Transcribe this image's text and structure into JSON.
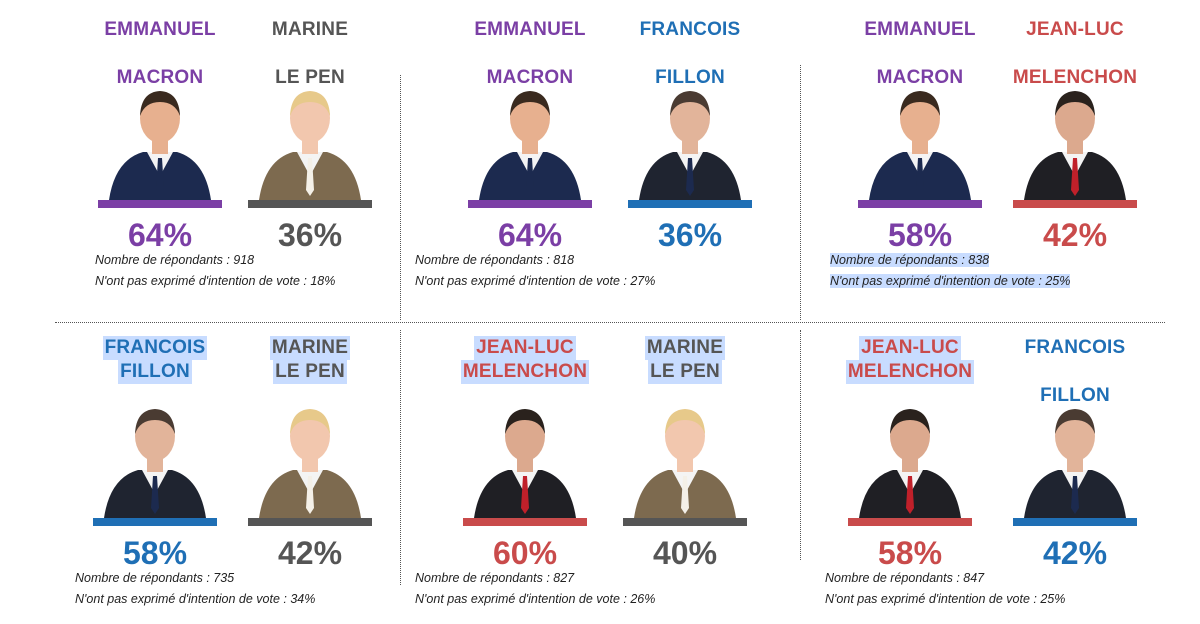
{
  "chart_data": [
    {
      "type": "bar",
      "categories": [
        "EMMANUEL MACRON",
        "MARINE LE PEN"
      ],
      "values": [
        64,
        36
      ],
      "candidates": [
        {
          "name_lines": [
            "EMMANUEL",
            "MACRON"
          ],
          "value": 64,
          "label": "64%",
          "color": "#7b3fa5",
          "suit": "#1c2a4f",
          "skin": "#e7b08f",
          "hair": "#3a2a1f",
          "tie": "#1c2a4f"
        },
        {
          "name_lines": [
            "MARINE",
            "LE PEN"
          ],
          "value": 36,
          "label": "36%",
          "color": "#555555",
          "suit": "#7d6a4f",
          "skin": "#f2c7ae",
          "hair": "#e7c98a",
          "tie": "#f4f0e8"
        }
      ],
      "respondents": "Nombre de répondants : 918",
      "no_intention": "N'ont pas exprimé d'intention de vote : 18%"
    },
    {
      "type": "bar",
      "categories": [
        "EMMANUEL MACRON",
        "FRANCOIS FILLON"
      ],
      "values": [
        64,
        36
      ],
      "candidates": [
        {
          "name_lines": [
            "EMMANUEL",
            "MACRON"
          ],
          "value": 64,
          "label": "64%",
          "color": "#7b3fa5",
          "suit": "#1c2a4f",
          "skin": "#e7b08f",
          "hair": "#3a2a1f",
          "tie": "#1c2a4f"
        },
        {
          "name_lines": [
            "FRANCOIS",
            "FILLON"
          ],
          "value": 36,
          "label": "36%",
          "color": "#1f6fb5",
          "suit": "#1f2430",
          "skin": "#e2b49a",
          "hair": "#4a3b32",
          "tie": "#1c2a4f"
        }
      ],
      "respondents": "Nombre de répondants : 818",
      "no_intention": "N'ont pas exprimé d'intention de vote : 27%"
    },
    {
      "type": "bar",
      "categories": [
        "EMMANUEL MACRON",
        "JEAN-LUC MELENCHON"
      ],
      "values": [
        58,
        42
      ],
      "candidates": [
        {
          "name_lines": [
            "EMMANUEL",
            "MACRON"
          ],
          "value": 58,
          "label": "58%",
          "color": "#7b3fa5",
          "suit": "#1c2a4f",
          "skin": "#e7b08f",
          "hair": "#3a2a1f",
          "tie": "#1c2a4f"
        },
        {
          "name_lines": [
            "JEAN-LUC",
            "MELENCHON"
          ],
          "value": 42,
          "label": "42%",
          "color": "#c94b4b",
          "suit": "#1f1f24",
          "skin": "#dca98e",
          "hair": "#2a221d",
          "tie": "#c0202a"
        }
      ],
      "respondents": "Nombre de répondants : 838",
      "no_intention": "N'ont pas exprimé d'intention de vote : 25%"
    },
    {
      "type": "bar",
      "categories": [
        "FRANCOIS FILLON",
        "MARINE LE PEN"
      ],
      "values": [
        58,
        42
      ],
      "candidates": [
        {
          "name_lines": [
            "FRANCOIS",
            "FILLON"
          ],
          "value": 58,
          "label": "58%",
          "color": "#1f6fb5",
          "suit": "#1f2430",
          "skin": "#e2b49a",
          "hair": "#4a3b32",
          "tie": "#1c2a4f"
        },
        {
          "name_lines": [
            "MARINE",
            "LE PEN"
          ],
          "value": 42,
          "label": "42%",
          "color": "#555555",
          "suit": "#7d6a4f",
          "skin": "#f2c7ae",
          "hair": "#e7c98a",
          "tie": "#f4f0e8"
        }
      ],
      "respondents": "Nombre de répondants : 735",
      "no_intention": "N'ont pas exprimé d'intention de vote : 34%"
    },
    {
      "type": "bar",
      "categories": [
        "JEAN-LUC MELENCHON",
        "MARINE LE PEN"
      ],
      "values": [
        60,
        40
      ],
      "candidates": [
        {
          "name_lines": [
            "JEAN-LUC",
            "MELENCHON"
          ],
          "value": 60,
          "label": "60%",
          "color": "#c94b4b",
          "suit": "#1f1f24",
          "skin": "#dca98e",
          "hair": "#2a221d",
          "tie": "#c0202a"
        },
        {
          "name_lines": [
            "MARINE",
            "LE PEN"
          ],
          "value": 40,
          "label": "40%",
          "color": "#555555",
          "suit": "#7d6a4f",
          "skin": "#f2c7ae",
          "hair": "#e7c98a",
          "tie": "#f4f0e8"
        }
      ],
      "respondents": "Nombre de répondants : 827",
      "no_intention": "N'ont pas exprimé d'intention de vote : 26%"
    },
    {
      "type": "bar",
      "categories": [
        "JEAN-LUC MELENCHON",
        "FRANCOIS FILLON"
      ],
      "values": [
        58,
        42
      ],
      "candidates": [
        {
          "name_lines": [
            "JEAN-LUC",
            "MELENCHON"
          ],
          "value": 58,
          "label": "58%",
          "color": "#c94b4b",
          "suit": "#1f1f24",
          "skin": "#dca98e",
          "hair": "#2a221d",
          "tie": "#c0202a"
        },
        {
          "name_lines": [
            "FRANCOIS",
            "FILLON"
          ],
          "value": 42,
          "label": "42%",
          "color": "#1f6fb5",
          "suit": "#1f2430",
          "skin": "#e2b49a",
          "hair": "#4a3b32",
          "tie": "#1c2a4f"
        }
      ],
      "respondents": "Nombre de répondants : 847",
      "no_intention": "N'ont pas exprimé d'intention de vote : 25%"
    }
  ]
}
